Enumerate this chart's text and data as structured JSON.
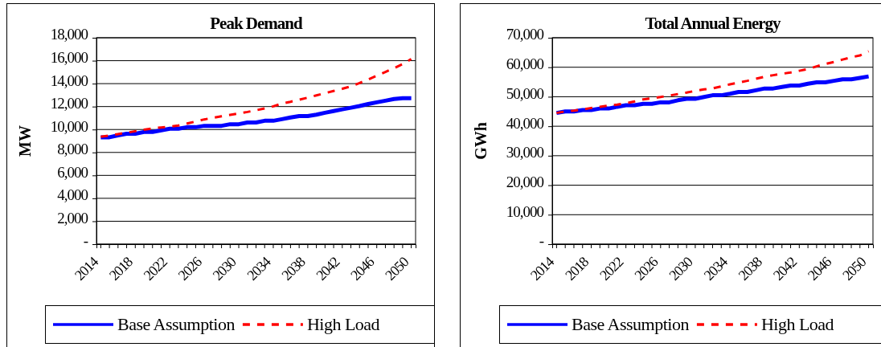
{
  "chart_data": [
    {
      "type": "line",
      "title": "Peak Demand",
      "ylabel": "MW",
      "categories": [
        "2014",
        null,
        null,
        null,
        "2018",
        null,
        null,
        null,
        "2022",
        null,
        null,
        null,
        "2026",
        null,
        null,
        null,
        "2030",
        null,
        null,
        null,
        "2034",
        null,
        null,
        null,
        "2038",
        null,
        null,
        null,
        "2042",
        null,
        null,
        null,
        "2046",
        null,
        null,
        null,
        "2050"
      ],
      "series": [
        {
          "name": "Base Assumption",
          "color": "#0000ff",
          "line_style": "solid",
          "values": [
            9320,
            9320,
            9490,
            9630,
            9630,
            9780,
            9780,
            9930,
            10070,
            10070,
            10200,
            10200,
            10320,
            10320,
            10320,
            10460,
            10460,
            10610,
            10610,
            10760,
            10760,
            10900,
            11050,
            11170,
            11170,
            11290,
            11460,
            11610,
            11760,
            11900,
            12050,
            12220,
            12370,
            12510,
            12660,
            12730,
            12730
          ]
        },
        {
          "name": "High Load",
          "color": "#ff0000",
          "line_style": "dashed",
          "values": [
            9370,
            9480,
            9600,
            9720,
            9850,
            9980,
            10100,
            10180,
            10250,
            10350,
            10520,
            10700,
            10880,
            11020,
            11150,
            11270,
            11400,
            11530,
            11680,
            11830,
            12020,
            12260,
            12420,
            12600,
            12780,
            12970,
            13170,
            13360,
            13550,
            13760,
            14050,
            14360,
            14700,
            15020,
            15350,
            15700,
            16150
          ]
        }
      ],
      "ylim": [
        0,
        18000
      ],
      "yticks": [
        {
          "value": 0,
          "label": "-"
        },
        {
          "value": 2000,
          "label": "2,000"
        },
        {
          "value": 4000,
          "label": "4,000"
        },
        {
          "value": 6000,
          "label": "6,000"
        },
        {
          "value": 8000,
          "label": "8,000"
        },
        {
          "value": 10000,
          "label": "10,000"
        },
        {
          "value": 12000,
          "label": "12,000"
        },
        {
          "value": 14000,
          "label": "14,000"
        },
        {
          "value": 16000,
          "label": "16,000"
        },
        {
          "value": 18000,
          "label": "18,000"
        }
      ],
      "grid": "y",
      "legend": "bottom",
      "marker": "none"
    },
    {
      "type": "line",
      "title": "Total Annual Energy",
      "ylabel": "GWh",
      "categories": [
        "2014",
        null,
        null,
        null,
        "2018",
        null,
        null,
        null,
        "2022",
        null,
        null,
        null,
        "2026",
        null,
        null,
        null,
        "2030",
        null,
        null,
        null,
        "2034",
        null,
        null,
        null,
        "2038",
        null,
        null,
        null,
        "2042",
        null,
        null,
        null,
        "2046",
        null,
        null,
        null,
        "2050"
      ],
      "series": [
        {
          "name": "Base Assumption",
          "color": "#0000ff",
          "line_style": "solid",
          "values": [
            44500,
            45000,
            45000,
            45500,
            45500,
            46000,
            46000,
            46600,
            47100,
            47100,
            47600,
            47600,
            48100,
            48100,
            48800,
            49300,
            49300,
            49900,
            50500,
            50500,
            51000,
            51600,
            51600,
            52200,
            52800,
            52800,
            53300,
            53800,
            53800,
            54400,
            54900,
            54900,
            55400,
            55900,
            55900,
            56400,
            56900
          ]
        },
        {
          "name": "High Load",
          "color": "#ff0000",
          "line_style": "dashed",
          "values": [
            44500,
            45000,
            45300,
            45700,
            46200,
            46600,
            47000,
            47300,
            47800,
            48400,
            49100,
            49500,
            49900,
            50400,
            50900,
            51400,
            52000,
            52500,
            52800,
            53500,
            54200,
            54800,
            55400,
            56100,
            56800,
            57300,
            57800,
            58200,
            58800,
            59400,
            60300,
            61100,
            61800,
            62600,
            63400,
            64000,
            65400
          ]
        }
      ],
      "ylim": [
        0,
        70000
      ],
      "yticks": [
        {
          "value": 0,
          "label": "-"
        },
        {
          "value": 10000,
          "label": "10,000"
        },
        {
          "value": 20000,
          "label": "20,000"
        },
        {
          "value": 30000,
          "label": "30,000"
        },
        {
          "value": 40000,
          "label": "40,000"
        },
        {
          "value": 50000,
          "label": "50,000"
        },
        {
          "value": 60000,
          "label": "60,000"
        },
        {
          "value": 70000,
          "label": "70,000"
        }
      ],
      "grid": "y",
      "legend": "bottom",
      "marker": "none"
    }
  ]
}
